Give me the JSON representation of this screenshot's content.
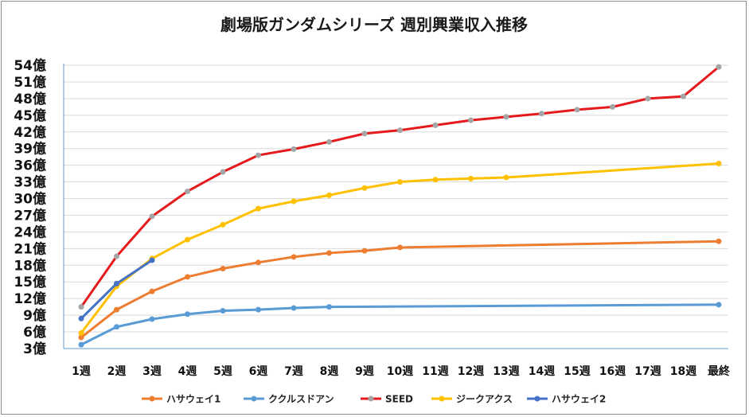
{
  "chart_data": {
    "type": "line",
    "title": "劇場版ガンダムシリーズ 週別興業収入推移",
    "xlabel": "",
    "ylabel": "",
    "categories": [
      "1週",
      "2週",
      "3週",
      "4週",
      "5週",
      "6週",
      "7週",
      "8週",
      "9週",
      "10週",
      "11週",
      "12週",
      "13週",
      "14週",
      "15週",
      "16週",
      "17週",
      "18週",
      "最終"
    ],
    "y_ticks": [
      "3億",
      "6億",
      "9億",
      "12億",
      "15億",
      "18億",
      "21億",
      "24億",
      "27億",
      "30億",
      "33億",
      "36億",
      "39億",
      "42億",
      "45億",
      "48億",
      "51億",
      "54億"
    ],
    "ylim": [
      3,
      54
    ],
    "unit": "億",
    "grid": true,
    "legend_position": "bottom",
    "series": [
      {
        "name": "ハサウェイ1",
        "color": "#ed7d31",
        "values": [
          5.0,
          10.0,
          13.3,
          15.9,
          17.4,
          18.5,
          19.5,
          20.2,
          20.6,
          21.2,
          null,
          null,
          null,
          null,
          null,
          null,
          null,
          null,
          22.3
        ]
      },
      {
        "name": "ククルスドアン",
        "color": "#5b9bd5",
        "values": [
          3.7,
          6.9,
          8.3,
          9.2,
          9.8,
          10.0,
          10.3,
          10.5,
          null,
          null,
          null,
          null,
          null,
          null,
          null,
          null,
          null,
          null,
          10.9
        ]
      },
      {
        "name": "SEED",
        "color": "#e41a1c",
        "values": [
          10.5,
          19.6,
          26.8,
          31.3,
          34.8,
          37.8,
          38.9,
          40.2,
          41.7,
          42.3,
          43.2,
          44.1,
          44.7,
          45.3,
          46.0,
          46.5,
          48.0,
          48.4,
          53.7
        ]
      },
      {
        "name": "ジークアクス",
        "color": "#ffc000",
        "values": [
          5.8,
          14.2,
          19.2,
          22.6,
          25.3,
          28.2,
          29.5,
          30.6,
          31.9,
          33.0,
          33.4,
          33.6,
          33.8,
          null,
          null,
          null,
          null,
          null,
          36.3
        ]
      },
      {
        "name": "ハサウェイ2",
        "color": "#4472c4",
        "values": [
          8.4,
          14.7,
          18.9,
          null,
          null,
          null,
          null,
          null,
          null,
          null,
          null,
          null,
          null,
          null,
          null,
          null,
          null,
          null,
          null
        ]
      }
    ]
  },
  "colors": {
    "grid": "#d9d9d9",
    "axis": "#5b9bd5",
    "marker_gray": "#a5a5a5"
  }
}
